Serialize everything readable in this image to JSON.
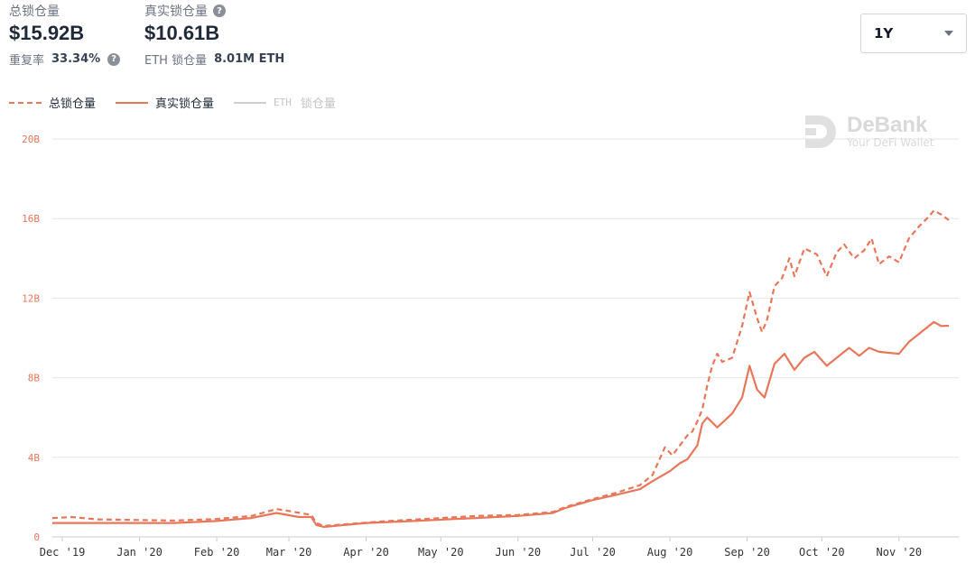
{
  "stats": {
    "total_tvl": {
      "label": "总锁仓量",
      "value": "$15.92B",
      "sub_label": "重复率",
      "sub_value": "33.34%"
    },
    "real_tvl": {
      "label": "真实锁仓量",
      "value": "$10.61B",
      "sub_label": "ETH 锁仓量",
      "sub_value": "8.01M ETH"
    }
  },
  "range_select": {
    "value": "1Y"
  },
  "legend": [
    {
      "label": "总锁仓量",
      "style": "dashed",
      "active": true
    },
    {
      "label": "真实锁仓量",
      "style": "solid",
      "active": true
    },
    {
      "label": "锁仓量",
      "prefix": "ETH",
      "style": "grey",
      "active": false
    }
  ],
  "watermark": {
    "title": "DeBank",
    "subtitle": "Your DeFi Wallet"
  },
  "colors": {
    "accent": "#e8775a",
    "grid": "#e6e6e6",
    "inactive": "#cfcfcf"
  },
  "chart_data": {
    "type": "line",
    "x_unit": "date",
    "y_unit": "billion USD",
    "ylim": [
      0,
      20
    ],
    "ytick_labels": [
      "0",
      "4B",
      "8B",
      "12B",
      "16B",
      "20B"
    ],
    "yticks": [
      0,
      4,
      8,
      12,
      16,
      20
    ],
    "xlim": [
      "2019-11-27",
      "2020-11-25"
    ],
    "xtick_labels": [
      "Dec '19",
      "Jan '20",
      "Feb '20",
      "Mar '20",
      "Apr '20",
      "May '20",
      "Jun '20",
      "Jul '20",
      "Aug '20",
      "Sep '20",
      "Oct '20",
      "Nov '20"
    ],
    "xticks": [
      "2019-12-01",
      "2020-01-01",
      "2020-02-01",
      "2020-03-01",
      "2020-04-01",
      "2020-05-01",
      "2020-06-01",
      "2020-07-01",
      "2020-08-01",
      "2020-09-01",
      "2020-10-01",
      "2020-11-01"
    ],
    "grid": true,
    "legend_position": "top-left",
    "series": [
      {
        "name": "总锁仓量",
        "style": "dashed",
        "points": [
          [
            "2019-11-27",
            0.95
          ],
          [
            "2019-12-05",
            1.0
          ],
          [
            "2019-12-15",
            0.88
          ],
          [
            "2020-01-01",
            0.85
          ],
          [
            "2020-01-15",
            0.82
          ],
          [
            "2020-02-01",
            0.9
          ],
          [
            "2020-02-15",
            1.05
          ],
          [
            "2020-02-25",
            1.4
          ],
          [
            "2020-03-01",
            1.3
          ],
          [
            "2020-03-10",
            1.1
          ],
          [
            "2020-03-12",
            0.7
          ],
          [
            "2020-03-15",
            0.55
          ],
          [
            "2020-03-25",
            0.65
          ],
          [
            "2020-04-10",
            0.8
          ],
          [
            "2020-05-01",
            0.95
          ],
          [
            "2020-05-15",
            1.05
          ],
          [
            "2020-06-01",
            1.1
          ],
          [
            "2020-06-15",
            1.25
          ],
          [
            "2020-06-20",
            1.5
          ],
          [
            "2020-07-01",
            1.9
          ],
          [
            "2020-07-10",
            2.2
          ],
          [
            "2020-07-20",
            2.6
          ],
          [
            "2020-07-25",
            3.1
          ],
          [
            "2020-07-30",
            4.5
          ],
          [
            "2020-08-02",
            4.1
          ],
          [
            "2020-08-05",
            4.6
          ],
          [
            "2020-08-08",
            5.1
          ],
          [
            "2020-08-10",
            5.3
          ],
          [
            "2020-08-12",
            5.8
          ],
          [
            "2020-08-14",
            6.4
          ],
          [
            "2020-08-16",
            7.6
          ],
          [
            "2020-08-18",
            8.6
          ],
          [
            "2020-08-20",
            9.2
          ],
          [
            "2020-08-22",
            8.8
          ],
          [
            "2020-08-26",
            9.0
          ],
          [
            "2020-08-30",
            10.6
          ],
          [
            "2020-09-02",
            12.3
          ],
          [
            "2020-09-05",
            11.0
          ],
          [
            "2020-09-07",
            10.3
          ],
          [
            "2020-09-09",
            10.9
          ],
          [
            "2020-09-12",
            12.6
          ],
          [
            "2020-09-15",
            13.0
          ],
          [
            "2020-09-18",
            14.0
          ],
          [
            "2020-09-20",
            13.1
          ],
          [
            "2020-09-24",
            14.5
          ],
          [
            "2020-09-29",
            14.2
          ],
          [
            "2020-10-03",
            13.1
          ],
          [
            "2020-10-07",
            14.3
          ],
          [
            "2020-10-10",
            14.7
          ],
          [
            "2020-10-14",
            14.0
          ],
          [
            "2020-10-18",
            14.4
          ],
          [
            "2020-10-21",
            15.0
          ],
          [
            "2020-10-24",
            13.7
          ],
          [
            "2020-10-28",
            14.1
          ],
          [
            "2020-11-01",
            13.8
          ],
          [
            "2020-11-05",
            15.0
          ],
          [
            "2020-11-09",
            15.6
          ],
          [
            "2020-11-13",
            16.1
          ],
          [
            "2020-11-15",
            16.4
          ],
          [
            "2020-11-18",
            16.2
          ],
          [
            "2020-11-21",
            15.92
          ]
        ]
      },
      {
        "name": "真实锁仓量",
        "style": "solid",
        "points": [
          [
            "2019-11-27",
            0.7
          ],
          [
            "2019-12-15",
            0.7
          ],
          [
            "2020-01-15",
            0.7
          ],
          [
            "2020-02-01",
            0.8
          ],
          [
            "2020-02-15",
            0.95
          ],
          [
            "2020-02-25",
            1.2
          ],
          [
            "2020-03-05",
            1.0
          ],
          [
            "2020-03-10",
            1.0
          ],
          [
            "2020-03-12",
            0.6
          ],
          [
            "2020-03-15",
            0.5
          ],
          [
            "2020-04-01",
            0.7
          ],
          [
            "2020-04-20",
            0.8
          ],
          [
            "2020-05-15",
            0.95
          ],
          [
            "2020-06-01",
            1.05
          ],
          [
            "2020-06-15",
            1.2
          ],
          [
            "2020-06-20",
            1.45
          ],
          [
            "2020-07-01",
            1.85
          ],
          [
            "2020-07-10",
            2.1
          ],
          [
            "2020-07-20",
            2.4
          ],
          [
            "2020-07-25",
            2.8
          ],
          [
            "2020-08-01",
            3.3
          ],
          [
            "2020-08-05",
            3.7
          ],
          [
            "2020-08-08",
            3.9
          ],
          [
            "2020-08-12",
            4.6
          ],
          [
            "2020-08-14",
            5.7
          ],
          [
            "2020-08-16",
            6.0
          ],
          [
            "2020-08-20",
            5.5
          ],
          [
            "2020-08-26",
            6.2
          ],
          [
            "2020-08-30",
            7.0
          ],
          [
            "2020-09-02",
            8.6
          ],
          [
            "2020-09-05",
            7.4
          ],
          [
            "2020-09-08",
            7.0
          ],
          [
            "2020-09-12",
            8.7
          ],
          [
            "2020-09-16",
            9.2
          ],
          [
            "2020-09-20",
            8.4
          ],
          [
            "2020-09-24",
            9.0
          ],
          [
            "2020-09-28",
            9.3
          ],
          [
            "2020-10-03",
            8.6
          ],
          [
            "2020-10-07",
            9.0
          ],
          [
            "2020-10-12",
            9.5
          ],
          [
            "2020-10-16",
            9.1
          ],
          [
            "2020-10-20",
            9.5
          ],
          [
            "2020-10-24",
            9.3
          ],
          [
            "2020-11-01",
            9.2
          ],
          [
            "2020-11-05",
            9.8
          ],
          [
            "2020-11-10",
            10.3
          ],
          [
            "2020-11-15",
            10.8
          ],
          [
            "2020-11-18",
            10.6
          ],
          [
            "2020-11-21",
            10.61
          ]
        ]
      }
    ]
  }
}
